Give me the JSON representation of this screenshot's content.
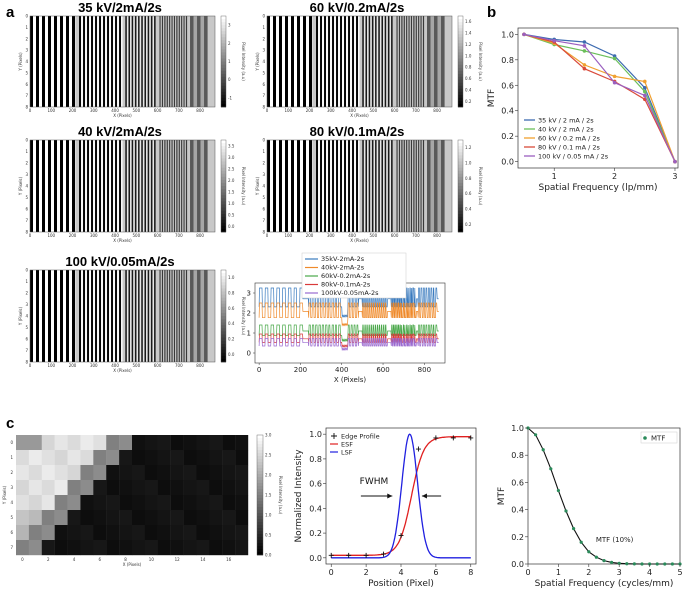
{
  "panel_labels": {
    "a": "a",
    "b": "b",
    "c": "c"
  },
  "colorbar_label": "Pixel Intensity (a.u)",
  "chart_data": [
    {
      "type": "heatmap",
      "id": "a1",
      "title": "35 kV/2mA/2s",
      "xlabel": "X (Pixels)",
      "ylabel": "Y (Pixels)",
      "xticks": [
        "0",
        "100",
        "200",
        "300",
        "400",
        "500",
        "600",
        "700",
        "800"
      ],
      "yticks": [
        "0",
        "1",
        "2",
        "3",
        "4",
        "5",
        "6",
        "7",
        "8"
      ],
      "cbar_ticks": [
        "3",
        "2",
        "1",
        "0",
        "-1"
      ],
      "period_px": [
        6,
        4,
        3.2,
        2.4,
        7
      ],
      "contrast": [
        1.0,
        0.95,
        0.8,
        0.55,
        0.3
      ]
    },
    {
      "type": "heatmap",
      "id": "a2",
      "title": "60 kV/0.2mA/2s",
      "xlabel": "X (Pixels)",
      "ylabel": "Y (Pixels)",
      "xticks": [
        "0",
        "100",
        "200",
        "300",
        "400",
        "500",
        "600",
        "700",
        "800"
      ],
      "yticks": [
        "0",
        "1",
        "2",
        "3",
        "4",
        "5",
        "6",
        "7",
        "8"
      ],
      "cbar_ticks": [
        "1.6",
        "1.4",
        "1.2",
        "1.0",
        "0.8",
        "0.6",
        "0.4",
        "0.2"
      ],
      "period_px": [
        6,
        4,
        3.2,
        2.4,
        7
      ],
      "contrast": [
        1.0,
        0.95,
        0.8,
        0.55,
        0.3
      ]
    },
    {
      "type": "heatmap",
      "id": "a3",
      "title": "40 kV/2mA/2s",
      "xlabel": "X (Pixels)",
      "ylabel": "Y (Pixels)",
      "xticks": [
        "0",
        "100",
        "200",
        "300",
        "400",
        "500",
        "600",
        "700",
        "800"
      ],
      "yticks": [
        "0",
        "1",
        "2",
        "3",
        "4",
        "5",
        "6",
        "7",
        "8"
      ],
      "cbar_ticks": [
        "3.5",
        "3.0",
        "2.5",
        "2.0",
        "1.5",
        "1.0",
        "0.5",
        "0.0"
      ],
      "period_px": [
        6,
        4,
        3.2,
        2.4,
        7
      ],
      "contrast": [
        1.0,
        0.95,
        0.8,
        0.55,
        0.3
      ]
    },
    {
      "type": "heatmap",
      "id": "a4",
      "title": "80 kV/0.1mA/2s",
      "xlabel": "X (Pixels)",
      "ylabel": "Y (Pixels)",
      "xticks": [
        "0",
        "100",
        "200",
        "300",
        "400",
        "500",
        "600",
        "700",
        "800"
      ],
      "yticks": [
        "0",
        "1",
        "2",
        "3",
        "4",
        "5",
        "6",
        "7",
        "8"
      ],
      "cbar_ticks": [
        "1.2",
        "1.0",
        "0.8",
        "0.6",
        "0.4",
        "0.2"
      ],
      "period_px": [
        6,
        4,
        3.2,
        2.4,
        7
      ],
      "contrast": [
        1.0,
        0.95,
        0.8,
        0.55,
        0.3
      ]
    },
    {
      "type": "heatmap",
      "id": "a5",
      "title": "100 kV/0.05mA/2s",
      "xlabel": "X (Pixels)",
      "ylabel": "Y (Pixels)",
      "xticks": [
        "0",
        "100",
        "200",
        "300",
        "400",
        "500",
        "600",
        "700",
        "800"
      ],
      "yticks": [
        "0",
        "1",
        "2",
        "3",
        "4",
        "5",
        "6",
        "7",
        "8"
      ],
      "cbar_ticks": [
        "1.0",
        "0.8",
        "0.6",
        "0.4",
        "0.2",
        "0.0"
      ],
      "period_px": [
        6,
        4,
        3.2,
        2.4,
        7
      ],
      "contrast": [
        1.0,
        0.95,
        0.8,
        0.55,
        0.3
      ]
    },
    {
      "type": "line",
      "id": "a6",
      "xlabel": "X (Pixels)",
      "xlim": [
        -20,
        900
      ],
      "ylim": [
        -0.5,
        3.5
      ],
      "xticks": [
        "0",
        "200",
        "400",
        "600",
        "800"
      ],
      "yticks": [
        "0",
        "1",
        "2",
        "3"
      ],
      "series": [
        {
          "name": "35kV-2mA-2s",
          "color": "#3a7bbf",
          "mean": 2.8,
          "amp": 0.45
        },
        {
          "name": "40kV-2mA-2s",
          "color": "#ef8a2b",
          "mean": 2.15,
          "amp": 0.35
        },
        {
          "name": "60kV-0.2mA-2s",
          "color": "#4aa84a",
          "mean": 1.15,
          "amp": 0.25
        },
        {
          "name": "80kV-0.1mA-2s",
          "color": "#d93a3a",
          "mean": 0.75,
          "amp": 0.2
        },
        {
          "name": "100kV-0.05mA-2s",
          "color": "#9a6ad0",
          "mean": 0.55,
          "amp": 0.18
        }
      ]
    },
    {
      "type": "line",
      "id": "b",
      "xlabel": "Spatial Frequency (lp/mm)",
      "ylabel": "MTF",
      "xlim": [
        0.4,
        3.05
      ],
      "ylim": [
        -0.05,
        1.05
      ],
      "xticks": [
        "1",
        "2",
        "3"
      ],
      "yticks": [
        "0.0",
        "0.2",
        "0.4",
        "0.6",
        "0.8",
        "1.0"
      ],
      "x": [
        0.5,
        1.0,
        1.5,
        2.0,
        2.5,
        3.0
      ],
      "series": [
        {
          "name": "35 kV / 2 mA / 2s",
          "color": "#3d6bb0",
          "values": [
            1.0,
            0.96,
            0.94,
            0.83,
            0.58,
            0.0
          ]
        },
        {
          "name": "40 kV / 2 mA / 2s",
          "color": "#6bbf5a",
          "values": [
            1.0,
            0.92,
            0.87,
            0.81,
            0.55,
            0.0
          ]
        },
        {
          "name": "60 kV / 0.2 mA / 2s",
          "color": "#f0a030",
          "values": [
            1.0,
            0.93,
            0.76,
            0.67,
            0.63,
            0.0
          ]
        },
        {
          "name": "80 kV / 0.1 mA / 2s",
          "color": "#d94a3a",
          "values": [
            1.0,
            0.94,
            0.73,
            0.63,
            0.49,
            0.0
          ]
        },
        {
          "name": "100 kV / 0.05 mA / 2s",
          "color": "#9a5fbf",
          "values": [
            1.0,
            0.95,
            0.91,
            0.62,
            0.52,
            0.0
          ]
        }
      ]
    },
    {
      "type": "heatmap",
      "id": "c1",
      "xlabel": "X (Pixels)",
      "ylabel": "Y (Pixels)",
      "xticks": [
        "0",
        "2",
        "4",
        "6",
        "8",
        "10",
        "12",
        "14",
        "16"
      ],
      "yticks": [
        "0",
        "1",
        "2",
        "3",
        "4",
        "5",
        "6",
        "7"
      ],
      "cbar_ticks": [
        "3.0",
        "2.5",
        "2.0",
        "1.5",
        "1.0",
        "0.5",
        "0.0"
      ],
      "grid_size": [
        18,
        8
      ]
    },
    {
      "type": "line",
      "id": "c2",
      "xlabel": "Position (Pixel)",
      "ylabel": "Normalized Intensity",
      "xlim": [
        -0.3,
        8.3
      ],
      "ylim": [
        -0.05,
        1.05
      ],
      "xticks": [
        "0",
        "2",
        "4",
        "6",
        "8"
      ],
      "yticks": [
        "0.0",
        "0.2",
        "0.4",
        "0.6",
        "0.8",
        "1.0"
      ],
      "annotation": "FWHM",
      "edge_profile": {
        "name": "Edge Profile",
        "color": "#111111",
        "x": [
          0,
          1,
          2,
          3,
          4,
          5,
          6,
          7,
          8
        ],
        "y": [
          0.02,
          0.02,
          0.02,
          0.03,
          0.18,
          0.88,
          0.97,
          0.97,
          0.97
        ]
      },
      "esf": {
        "name": "ESF",
        "color": "#e02020",
        "center": 4.6,
        "width": 0.35,
        "low": 0.02,
        "high": 0.98
      },
      "lsf": {
        "name": "LSF",
        "color": "#2020e0",
        "center": 4.5,
        "sigma": 0.45
      }
    },
    {
      "type": "line",
      "id": "c3",
      "xlabel": "Spatial Frequency (cycles/mm)",
      "ylabel": "MTF",
      "xlim": [
        0,
        5
      ],
      "ylim": [
        0,
        1.0
      ],
      "xticks": [
        "0",
        "1",
        "2",
        "3",
        "4",
        "5"
      ],
      "yticks": [
        "0.0",
        "0.2",
        "0.4",
        "0.6",
        "0.8",
        "1.0"
      ],
      "annotation": "MTF (10%)",
      "series": [
        {
          "name": "MTF",
          "color": "#2a8a5a",
          "x": [
            0,
            0.25,
            0.5,
            0.75,
            1.0,
            1.25,
            1.5,
            1.75,
            2.0,
            2.25,
            2.5,
            2.75,
            3.0,
            3.25,
            3.5,
            3.75,
            4.0,
            4.25,
            4.5,
            4.75,
            5.0
          ],
          "values": [
            1.0,
            0.95,
            0.84,
            0.7,
            0.54,
            0.39,
            0.26,
            0.16,
            0.09,
            0.05,
            0.025,
            0.012,
            0.005,
            0.002,
            0.001,
            0,
            0,
            0,
            0,
            0,
            0
          ]
        }
      ]
    }
  ]
}
